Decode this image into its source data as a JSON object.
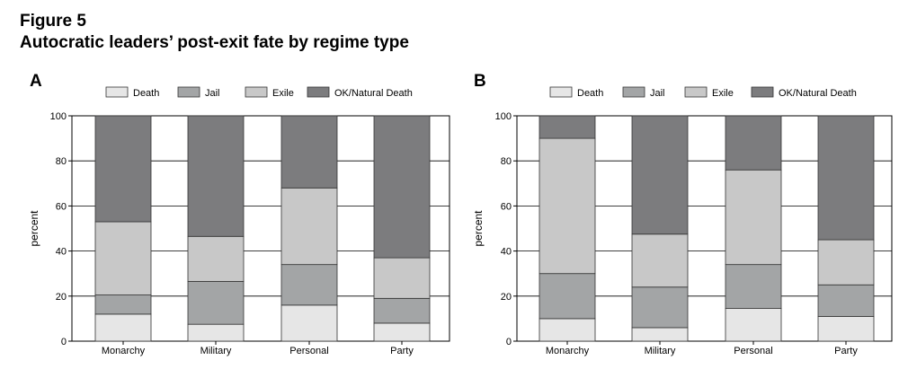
{
  "figure_label": "Figure 5",
  "figure_title": "Autocratic leaders’ post-exit fate by regime type",
  "colors": {
    "Death": "#e6e6e6",
    "Jail": "#a3a5a6",
    "Exile": "#c8c8c8",
    "OK/Natural Death": "#7c7c7e"
  },
  "chart_data": [
    {
      "panel": "A",
      "type": "bar",
      "stacked": true,
      "categories": [
        "Monarchy",
        "Military",
        "Personal",
        "Party"
      ],
      "series": [
        {
          "name": "Death",
          "values": [
            12,
            7.5,
            16,
            8
          ]
        },
        {
          "name": "Jail",
          "values": [
            8.5,
            19,
            18,
            11
          ]
        },
        {
          "name": "Exile",
          "values": [
            32.5,
            20,
            34,
            18
          ]
        },
        {
          "name": "OK/Natural Death",
          "values": [
            47,
            53.5,
            32,
            63
          ]
        }
      ],
      "ylabel": "percent",
      "ylim": [
        0,
        100
      ],
      "yticks": [
        0,
        20,
        40,
        60,
        80,
        100
      ],
      "grid": true,
      "legend": "top"
    },
    {
      "panel": "B",
      "type": "bar",
      "stacked": true,
      "categories": [
        "Monarchy",
        "Military",
        "Personal",
        "Party"
      ],
      "series": [
        {
          "name": "Death",
          "values": [
            10,
            6,
            14.5,
            11
          ]
        },
        {
          "name": "Jail",
          "values": [
            20,
            18,
            19.5,
            14
          ]
        },
        {
          "name": "Exile",
          "values": [
            60,
            23.5,
            42,
            20
          ]
        },
        {
          "name": "OK/Natural Death",
          "values": [
            10,
            52.5,
            24,
            55
          ]
        }
      ],
      "ylabel": "percent",
      "ylim": [
        0,
        100
      ],
      "yticks": [
        0,
        20,
        40,
        60,
        80,
        100
      ],
      "grid": true,
      "legend": "top"
    }
  ]
}
